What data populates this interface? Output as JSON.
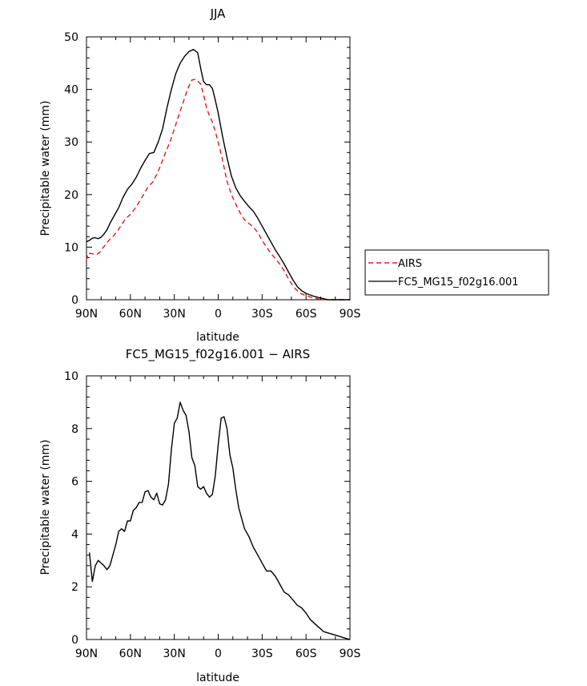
{
  "chart_data": [
    {
      "type": "line",
      "title": "JJA",
      "xlabel": "latitude",
      "ylabel": "Precipitable water (mm)",
      "x_tick_labels": [
        "90N",
        "60N",
        "30N",
        "0",
        "30S",
        "60S",
        "90S"
      ],
      "x_tick_values": [
        90,
        60,
        30,
        0,
        -30,
        -60,
        -90
      ],
      "y_tick_labels": [
        "0",
        "10",
        "20",
        "30",
        "40",
        "50"
      ],
      "y_tick_values": [
        0,
        10,
        20,
        30,
        40,
        50
      ],
      "xlim": [
        90,
        -90
      ],
      "ylim": [
        0,
        50
      ],
      "legend_position": "right-outside",
      "series": [
        {
          "name": "AIRS",
          "color": "#e31a1c",
          "dash": "dashed",
          "x": [
            90,
            89,
            87,
            85,
            83,
            81,
            79,
            77,
            75,
            72,
            69,
            66,
            63,
            60,
            57,
            54,
            51,
            48,
            45,
            42,
            39,
            36,
            33,
            30,
            27,
            24,
            21,
            18,
            15,
            12,
            10,
            8,
            6,
            4,
            2,
            0,
            -3,
            -6,
            -9,
            -12,
            -15,
            -18,
            -21,
            -24,
            -27,
            -30,
            -33,
            -36,
            -39,
            -42,
            -45,
            -48,
            -51,
            -54,
            -57,
            -60,
            -63,
            -66,
            -69,
            -72,
            -75,
            -78,
            -81,
            -84,
            -87,
            -90
          ],
          "y": [
            7.5,
            8.8,
            8.8,
            8.7,
            8.6,
            9.0,
            9.8,
            10.5,
            11.2,
            12.0,
            13.0,
            14.3,
            15.5,
            16.2,
            17.3,
            18.6,
            20.0,
            21.5,
            22.3,
            23.8,
            25.8,
            28.0,
            30.0,
            32.5,
            35.0,
            37.5,
            40.0,
            41.8,
            41.9,
            41.0,
            39.0,
            36.5,
            35.0,
            33.8,
            32.0,
            30.0,
            26.5,
            22.5,
            20.0,
            18.2,
            16.5,
            15.2,
            14.5,
            13.8,
            12.8,
            11.3,
            10.0,
            8.8,
            7.8,
            6.8,
            5.5,
            4.0,
            2.6,
            1.7,
            1.1,
            0.8,
            0.5,
            0.3,
            0.1,
            0.0,
            0.0,
            0.0,
            0.0,
            0.0,
            0.0,
            0.0
          ]
        },
        {
          "name": "FC5_MG15_f02g16.001",
          "color": "#000000",
          "dash": "solid",
          "x": [
            90,
            88,
            86,
            84,
            82,
            80,
            78,
            76,
            74,
            71,
            68,
            65,
            62,
            59,
            56,
            53,
            50,
            47,
            44,
            41,
            38,
            35,
            32,
            29,
            26,
            23,
            20,
            17,
            14,
            12,
            10,
            8,
            6,
            4,
            2,
            0,
            -3,
            -6,
            -9,
            -12,
            -15,
            -18,
            -21,
            -24,
            -27,
            -30,
            -33,
            -36,
            -39,
            -42,
            -45,
            -48,
            -51,
            -54,
            -57,
            -60,
            -63,
            -66,
            -69,
            -72,
            -75,
            -78,
            -81,
            -84,
            -87,
            -90
          ],
          "y": [
            11.0,
            11.3,
            11.7,
            11.8,
            11.6,
            11.9,
            12.5,
            13.3,
            14.5,
            16.0,
            17.5,
            19.5,
            21.0,
            22.0,
            23.3,
            25.0,
            26.5,
            27.8,
            28.0,
            30.0,
            32.5,
            36.5,
            40.0,
            43.0,
            45.0,
            46.3,
            47.2,
            47.6,
            47.0,
            44.0,
            41.5,
            40.9,
            40.9,
            40.2,
            38.0,
            35.5,
            31.0,
            27.0,
            23.5,
            21.3,
            19.8,
            18.7,
            17.7,
            16.8,
            15.5,
            14.0,
            12.5,
            11.0,
            9.5,
            8.2,
            6.8,
            5.3,
            3.8,
            2.5,
            1.7,
            1.2,
            0.9,
            0.6,
            0.4,
            0.2,
            0.0,
            0.0,
            0.0,
            0.0,
            0.0,
            0.0
          ]
        }
      ]
    },
    {
      "type": "line",
      "title": "FC5_MG15_f02g16.001 − AIRS",
      "xlabel": "latitude",
      "ylabel": "Precipitable water (mm)",
      "x_tick_labels": [
        "90N",
        "60N",
        "30N",
        "0",
        "30S",
        "60S",
        "90S"
      ],
      "x_tick_values": [
        90,
        60,
        30,
        0,
        -30,
        -60,
        -90
      ],
      "y_tick_labels": [
        "0",
        "2",
        "4",
        "6",
        "8",
        "10"
      ],
      "y_tick_values": [
        0,
        2,
        4,
        6,
        8,
        10
      ],
      "xlim": [
        90,
        -90
      ],
      "ylim": [
        0,
        10
      ],
      "series": [
        {
          "name": "",
          "color": "#000000",
          "dash": "solid",
          "x": [
            88,
            86,
            84,
            82,
            80,
            78,
            76,
            74,
            72,
            70,
            68,
            66,
            64,
            62,
            60,
            58,
            56,
            54,
            52,
            50,
            48,
            46,
            44,
            42,
            40,
            38,
            36,
            34,
            32,
            30,
            28,
            26,
            24,
            22,
            20,
            18,
            16,
            14,
            12,
            10,
            8,
            6,
            4,
            2,
            0,
            -2,
            -4,
            -6,
            -8,
            -10,
            -12,
            -14,
            -16,
            -18,
            -21,
            -24,
            -27,
            -30,
            -33,
            -36,
            -39,
            -42,
            -45,
            -48,
            -51,
            -54,
            -57,
            -60,
            -63,
            -66,
            -69,
            -72,
            -75,
            -78,
            -81,
            -84,
            -87,
            -90
          ],
          "y": [
            3.3,
            2.2,
            2.8,
            3.0,
            2.9,
            2.8,
            2.65,
            2.8,
            3.2,
            3.6,
            4.1,
            4.2,
            4.1,
            4.5,
            4.5,
            4.9,
            5.0,
            5.2,
            5.2,
            5.6,
            5.65,
            5.4,
            5.3,
            5.55,
            5.15,
            5.1,
            5.3,
            5.9,
            7.2,
            8.2,
            8.4,
            9.0,
            8.7,
            8.5,
            7.9,
            6.9,
            6.6,
            5.8,
            5.7,
            5.8,
            5.55,
            5.4,
            5.5,
            6.2,
            7.4,
            8.4,
            8.45,
            8.0,
            7.0,
            6.5,
            5.7,
            5.0,
            4.6,
            4.2,
            3.9,
            3.5,
            3.2,
            2.9,
            2.6,
            2.6,
            2.4,
            2.1,
            1.8,
            1.7,
            1.5,
            1.3,
            1.2,
            1.0,
            0.75,
            0.6,
            0.45,
            0.3,
            0.25,
            0.2,
            0.15,
            0.1,
            0.05,
            0.0
          ]
        }
      ]
    }
  ]
}
